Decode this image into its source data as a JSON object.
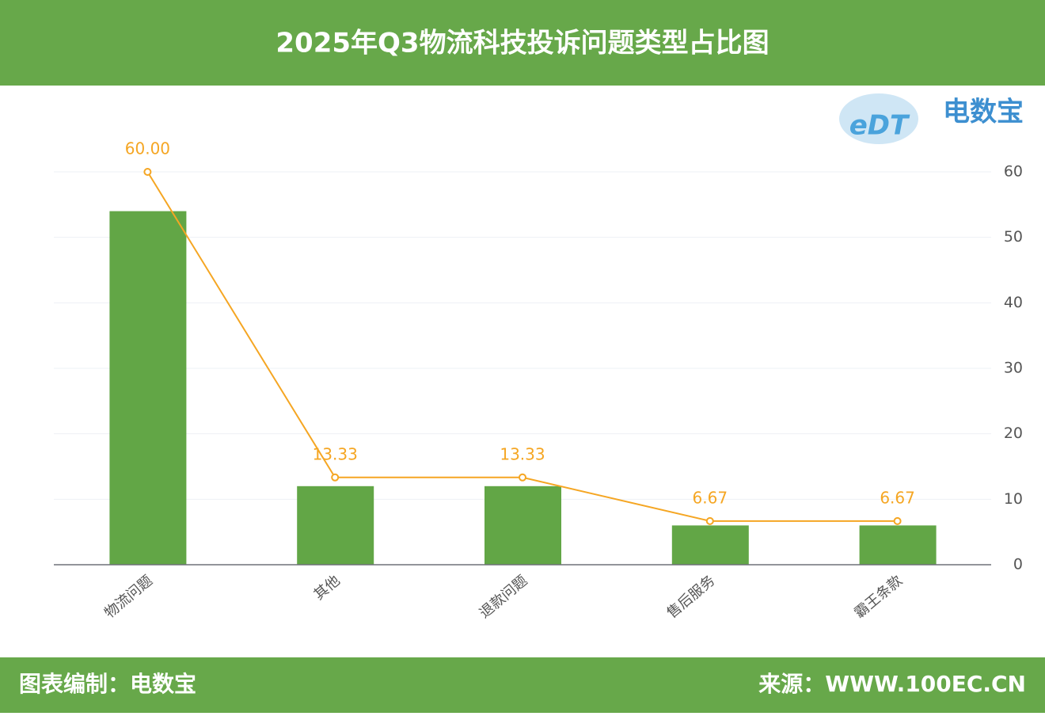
{
  "header": {
    "title": "2025年Q3物流科技投诉问题类型占比图"
  },
  "logo": {
    "mark": "eDT",
    "name": "电数宝"
  },
  "footer": {
    "left": "图表编制：电数宝",
    "right": "来源：WWW.100EC.CN"
  },
  "chart_data": {
    "type": "bar-line",
    "categories": [
      "物流问题",
      "其他",
      "退款问题",
      "售后服务",
      "霸王条款"
    ],
    "series": [
      {
        "type": "bar",
        "color": "#62a646",
        "values": [
          9,
          2,
          2,
          1,
          1
        ]
      },
      {
        "type": "line",
        "axis": "y2",
        "color": "#f5a623",
        "values": [
          60,
          13.33,
          13.33,
          6.67,
          6.67
        ],
        "value_labels": [
          "60.00",
          "13.33",
          "13.33",
          "6.67",
          "6.67"
        ]
      }
    ],
    "ylim": [
      0,
      10
    ],
    "y2lim": [
      0,
      60
    ],
    "y2ticks": [
      0,
      10,
      20,
      30,
      40,
      50,
      60
    ],
    "grid": true
  }
}
